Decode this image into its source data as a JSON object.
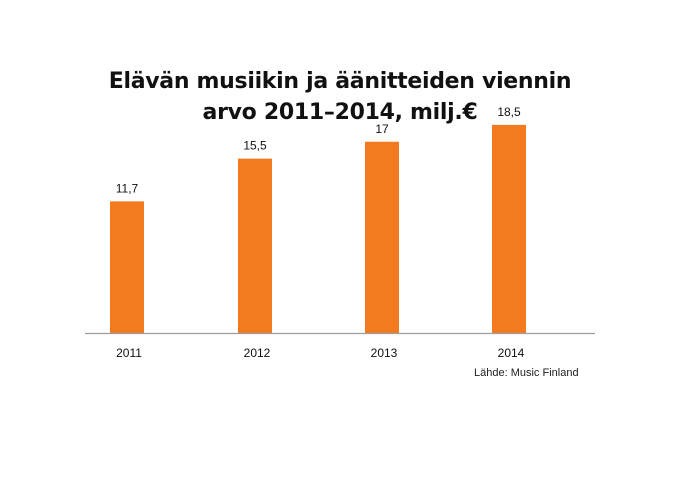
{
  "chart_data": {
    "type": "bar",
    "title": "Elävän musiikin ja äänitteiden viennin arvo 2011–2014, milj.€",
    "title_lines": [
      "Elävän musiikin ja äänitteiden viennin",
      "arvo 2011–2014, milj.€"
    ],
    "categories": [
      "2011",
      "2012",
      "2013",
      "2014"
    ],
    "values": [
      11.7,
      15.5,
      17,
      18.5
    ],
    "value_labels": [
      "11,7",
      "15,5",
      "17",
      "18,5"
    ],
    "xlabel": "",
    "ylabel": "",
    "ylim": [
      0,
      20
    ],
    "grid": false,
    "legend": "none",
    "bar_color": "#F47A20",
    "axis_color": "#9E9E9E",
    "source": "Lähde: Music Finland"
  }
}
